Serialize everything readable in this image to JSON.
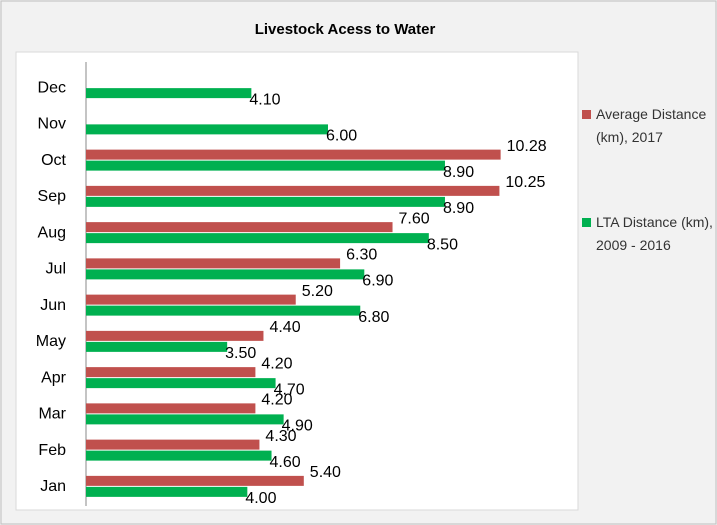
{
  "chart_data": {
    "type": "hbar",
    "title": "Livestock Acess to Water",
    "categories": [
      "Jan",
      "Feb",
      "Mar",
      "Apr",
      "May",
      "Jun",
      "Jul",
      "Aug",
      "Sep",
      "Oct",
      "Nov",
      "Dec"
    ],
    "series": [
      {
        "name": "Average Distance (km), 2017",
        "color": "#c0504d",
        "values": [
          5.4,
          4.3,
          4.2,
          4.2,
          4.4,
          5.2,
          6.3,
          7.6,
          10.25,
          10.28,
          null,
          null
        ],
        "value_labels": [
          "5.40",
          "4.30",
          "4.20",
          "4.20",
          "4.40",
          "5.20",
          "6.30",
          "7.60",
          "10.25",
          "10.28",
          null,
          null
        ]
      },
      {
        "name": "LTA Distance (km), 2009 - 2016",
        "color": "#00b050",
        "values": [
          4.0,
          4.6,
          4.9,
          4.7,
          3.5,
          6.8,
          6.9,
          8.5,
          8.9,
          8.9,
          6.0,
          4.1
        ],
        "value_labels": [
          "4.00",
          "4.60",
          "4.90",
          "4.70",
          "3.50",
          "6.80",
          "6.90",
          "8.50",
          "8.90",
          "8.90",
          "6.00",
          "4.10"
        ]
      }
    ],
    "xlim": [
      0,
      12
    ],
    "legend": "right"
  }
}
